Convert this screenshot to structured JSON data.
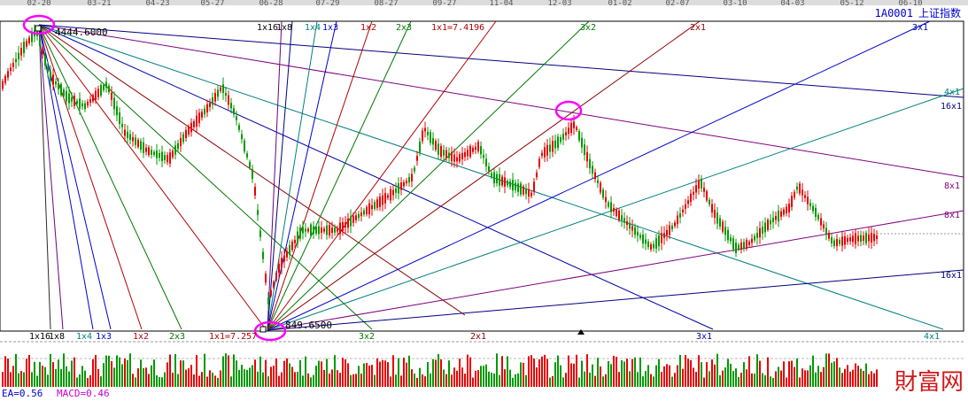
{
  "header": {
    "dates": [
      "02-20",
      "03-21",
      "04-23",
      "05-27",
      "06-28",
      "07-29",
      "08-27",
      "09-27",
      "11-04",
      "12-03",
      "01-02",
      "02-07",
      "03-10",
      "04-03",
      "05-12",
      "06-10"
    ],
    "index_code": "1A0001",
    "index_name": "上证指数"
  },
  "colors": {
    "up": "#e60000",
    "down": "#009900",
    "frame": "#000000",
    "header_text": "#0000cc",
    "marker": "#ff00ff",
    "watermark": "#cc0000"
  },
  "chart_data": {
    "type": "candlestick",
    "title": "上证指数",
    "xlabel": "",
    "ylabel": "",
    "high_pivot": {
      "label": "4444.6000",
      "value": 4444.6,
      "date": "02-20"
    },
    "low_pivot": {
      "label": "849.6500",
      "value": 849.65,
      "date": "06-28"
    },
    "ylim": [
      849.65,
      4444.6
    ],
    "upper_fan_labels": [
      "1x16",
      "1x8",
      "1x4",
      "1x3",
      "1x2",
      "2x3",
      "1x1=7.4196",
      "3x2",
      "2x1",
      "3x1",
      "4x1",
      "16x1",
      "8x1"
    ],
    "lower_fan_labels": [
      "1x16",
      "1x8",
      "1x4",
      "1x3",
      "1x2",
      "2x3",
      "1x1=7.257",
      "3x2",
      "2x1",
      "3x1",
      "4x1",
      "8x1",
      "16x1"
    ],
    "indicators": [
      {
        "label": "EA=",
        "value": "0.56"
      },
      {
        "label": "MACD=",
        "value": "0.46"
      }
    ]
  },
  "watermark": "財富网"
}
